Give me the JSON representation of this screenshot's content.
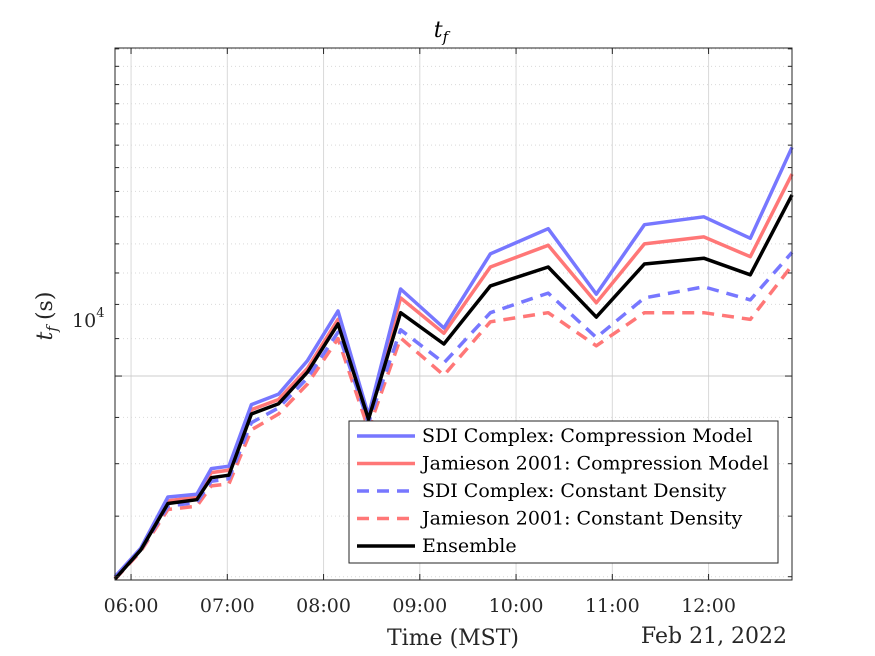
{
  "chart_data": {
    "type": "line",
    "title": "t_f",
    "title_main": "t",
    "title_sub": "f",
    "xlabel": "Time (MST)",
    "ylabel": "t_f (s)",
    "ylabel_main": "t",
    "ylabel_sub": "f",
    "ylabel_units": "(s)",
    "date_label": "Feb 21, 2022",
    "y_scale": "log",
    "x_ticks": [
      "06:00",
      "07:00",
      "08:00",
      "09:00",
      "10:00",
      "11:00",
      "12:00"
    ],
    "y_tick_base": "10",
    "y_tick_exp": "4",
    "xlim": [
      "05:50",
      "12:52"
    ],
    "ylim": [
      5950,
      23050
    ],
    "grid": true,
    "legend_position": "lower-right",
    "x": [
      "05:50",
      "06:06",
      "06:23",
      "06:41",
      "06:50",
      "07:01",
      "07:15",
      "07:32",
      "07:50",
      "08:09",
      "08:28",
      "08:48",
      "09:15",
      "09:44",
      "10:20",
      "10:50",
      "11:20",
      "11:57",
      "12:26",
      "12:52"
    ],
    "series": [
      {
        "name": "SDI Complex: Compression Model",
        "color": "#7777ff",
        "dash": "solid",
        "values": [
          6000,
          6450,
          7350,
          7400,
          7900,
          7950,
          9300,
          9550,
          10400,
          11800,
          9050,
          12480,
          11300,
          13650,
          14550,
          12320,
          14700,
          15000,
          14200,
          17900
        ]
      },
      {
        "name": "Jamieson 2001: Compression Model",
        "color": "#ff7777",
        "dash": "solid",
        "values": [
          5980,
          6430,
          7280,
          7350,
          7820,
          7870,
          9180,
          9420,
          10200,
          11550,
          8980,
          12200,
          11150,
          13200,
          13950,
          12050,
          14000,
          14250,
          13550,
          16720
        ]
      },
      {
        "name": "SDI Complex: Constant Density",
        "color": "#7777ff",
        "dash": "dashed",
        "values": [
          5970,
          6420,
          7180,
          7250,
          7650,
          7700,
          8880,
          9220,
          9950,
          11180,
          8880,
          11250,
          10340,
          11750,
          12350,
          11030,
          12200,
          12550,
          12140,
          13700
        ]
      },
      {
        "name": "Jamieson 2001: Constant Density",
        "color": "#ff7777",
        "dash": "dashed",
        "values": [
          5960,
          6400,
          7120,
          7180,
          7560,
          7600,
          8720,
          9080,
          9800,
          11000,
          8730,
          11020,
          10020,
          11480,
          11750,
          10800,
          11750,
          11750,
          11550,
          13250
        ]
      },
      {
        "name": "Ensemble",
        "color": "#000000",
        "dash": "solid",
        "values": [
          5965,
          6420,
          7230,
          7300,
          7720,
          7770,
          9080,
          9320,
          10100,
          11420,
          8960,
          11750,
          10850,
          12580,
          13200,
          11620,
          13300,
          13500,
          12940,
          15860
        ]
      }
    ]
  }
}
